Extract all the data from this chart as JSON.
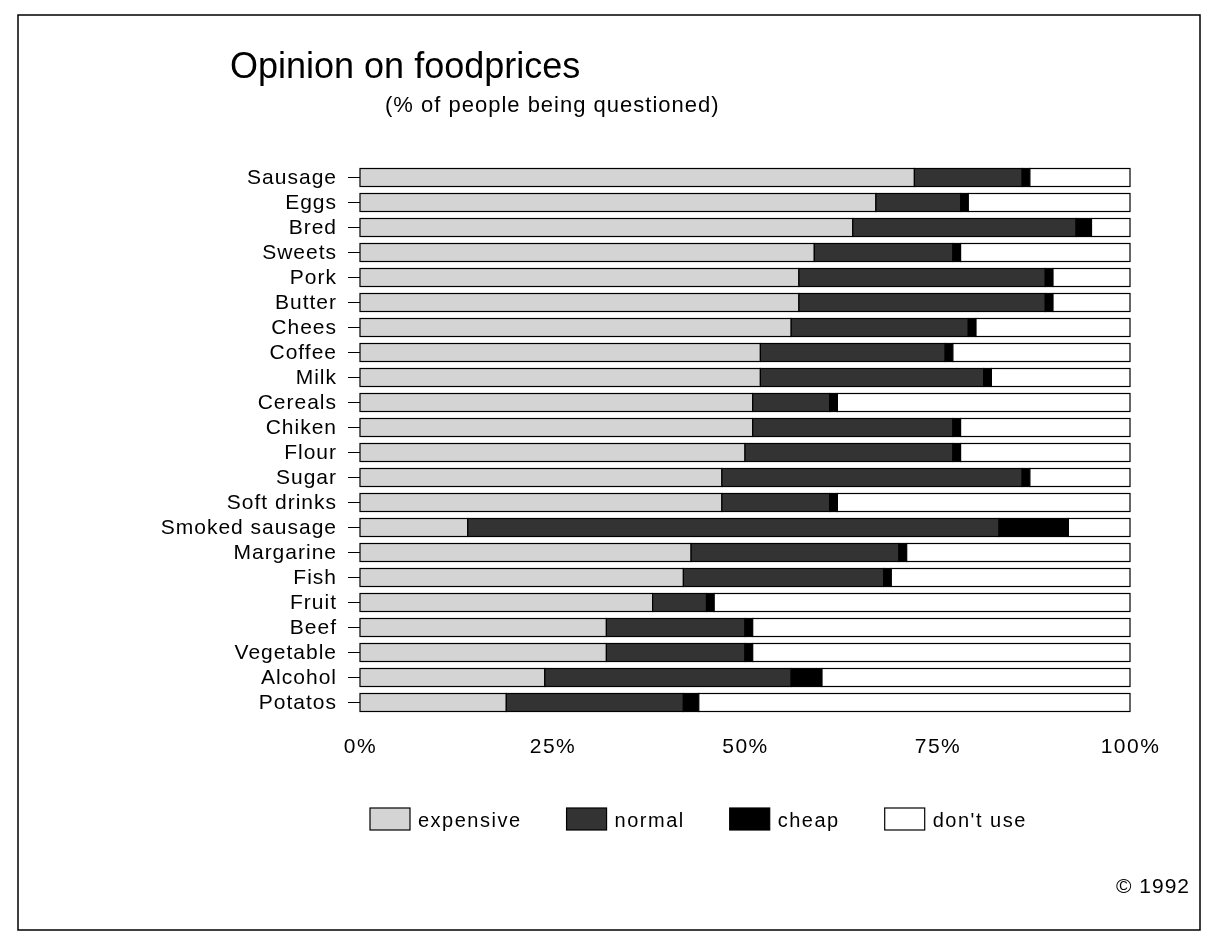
{
  "chart_data": {
    "type": "bar",
    "orientation": "horizontal",
    "stacked": true,
    "title": "Opinion on foodprices",
    "subtitle": "(% of people being questioned)",
    "categories": [
      "Sausage",
      "Eggs",
      "Bred",
      "Sweets",
      "Pork",
      "Butter",
      "Chees",
      "Coffee",
      "Milk",
      "Cereals",
      "Chiken",
      "Flour",
      "Sugar",
      "Soft drinks",
      "Smoked sausage",
      "Margarine",
      "Fish",
      "Fruit",
      "Beef",
      "Vegetable",
      "Alcohol",
      "Potatos"
    ],
    "series": [
      {
        "name": "expensive",
        "color": "#d4d4d4",
        "values": [
          72,
          67,
          64,
          59,
          57,
          57,
          56,
          52,
          52,
          51,
          51,
          50,
          47,
          47,
          14,
          43,
          42,
          38,
          32,
          32,
          24,
          19
        ]
      },
      {
        "name": "normal",
        "color": "#333333",
        "values": [
          14,
          11,
          29,
          18,
          32,
          32,
          23,
          24,
          29,
          10,
          26,
          27,
          39,
          14,
          69,
          27,
          26,
          7,
          18,
          18,
          32,
          23
        ]
      },
      {
        "name": "cheap",
        "color": "#000000",
        "values": [
          1,
          1,
          2,
          1,
          1,
          1,
          1,
          1,
          1,
          1,
          1,
          1,
          1,
          1,
          9,
          1,
          1,
          1,
          1,
          1,
          4,
          2
        ]
      },
      {
        "name": "don't use",
        "color": "#ffffff",
        "values": [
          13,
          21,
          5,
          22,
          10,
          10,
          20,
          23,
          18,
          38,
          22,
          22,
          13,
          38,
          8,
          29,
          31,
          54,
          49,
          49,
          40,
          56
        ]
      }
    ],
    "xlim": [
      0,
      100
    ],
    "xticks": [
      {
        "value": 0,
        "label": "0%"
      },
      {
        "value": 25,
        "label": "25%"
      },
      {
        "value": 50,
        "label": "50%"
      },
      {
        "value": 75,
        "label": "75%"
      },
      {
        "value": 100,
        "label": "100%"
      }
    ],
    "legend": "bottom",
    "annotations": [
      "© 1992"
    ]
  }
}
